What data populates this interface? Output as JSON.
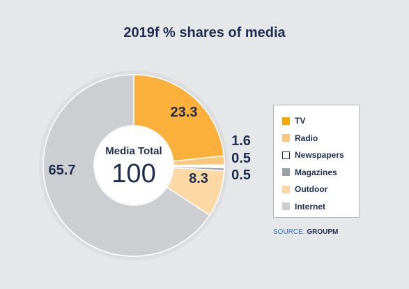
{
  "chart_data": {
    "type": "donut",
    "title": "2019f % shares of media",
    "center_label": "Media Total",
    "center_value": "100",
    "series": [
      {
        "name": "TV",
        "value": 23.3,
        "label": "23.3",
        "color": "#fbb03b",
        "legend_color": "#f5a800"
      },
      {
        "name": "Radio",
        "value": 1.6,
        "label": "1.6",
        "color": "#f9c77d",
        "legend_color": "#f9c77d"
      },
      {
        "name": "Newspapers",
        "value": 0.5,
        "label": "0.5",
        "color": "#ffffff",
        "legend_color": "#ffffff"
      },
      {
        "name": "Magazines",
        "value": 0.5,
        "label": "0.5",
        "color": "#9c9fa4",
        "legend_color": "#9c9fa4"
      },
      {
        "name": "Outdoor",
        "value": 8.3,
        "label": "8.3",
        "color": "#fcd9a4",
        "legend_color": "#fcd9a4"
      },
      {
        "name": "Internet",
        "value": 65.7,
        "label": "65.7",
        "color": "#cdced1",
        "legend_color": "#cdced1"
      }
    ],
    "legend_position": "right",
    "source_prefix": "SOURCE:",
    "source_name": "GROUPM"
  },
  "colors": {
    "background": "#e6e7e9",
    "text": "#1f2d4e",
    "source": "#2a73c4"
  }
}
